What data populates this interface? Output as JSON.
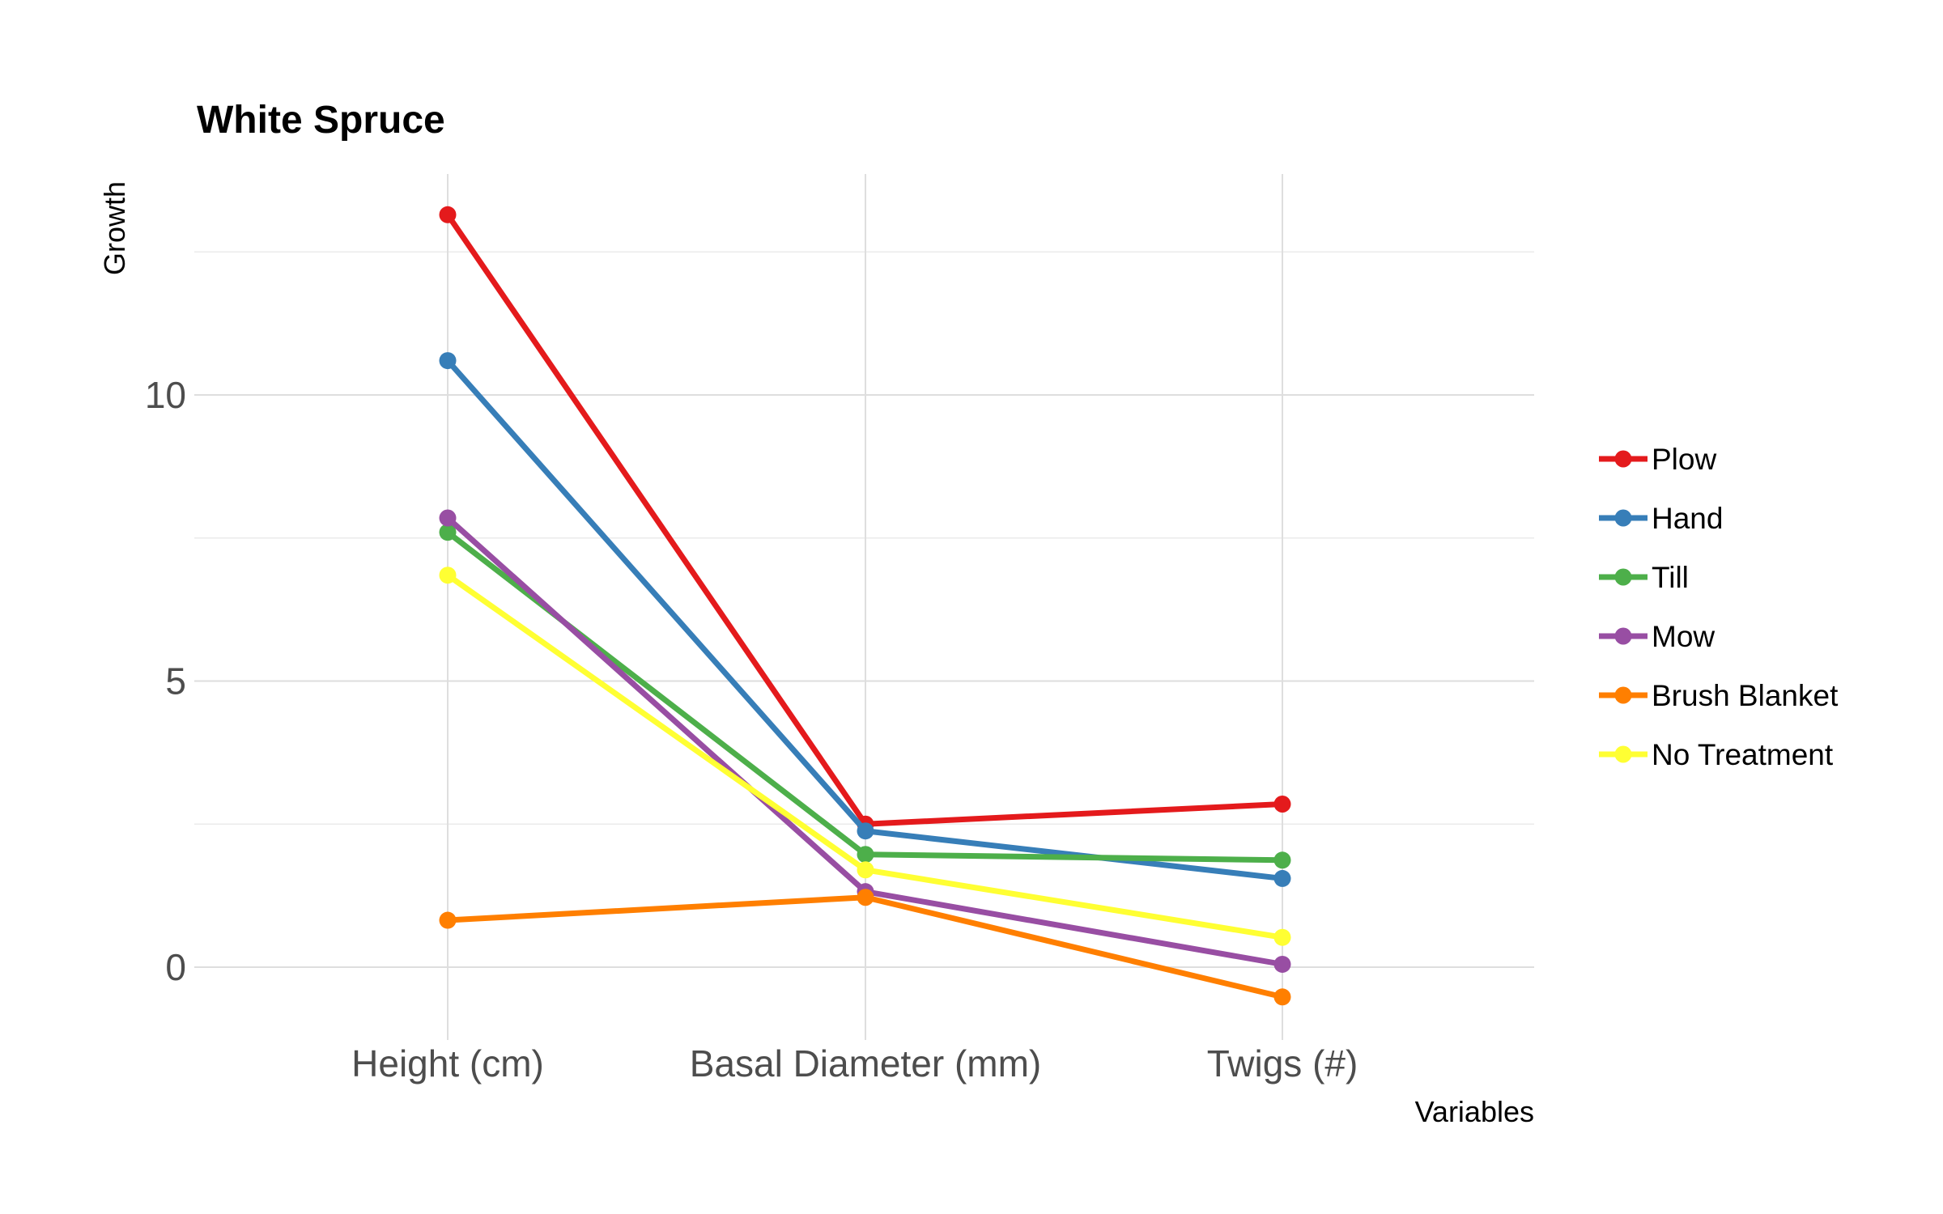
{
  "chart_data": {
    "type": "line",
    "title": "White Spruce",
    "xlabel": "Variables",
    "ylabel": "Growth",
    "categories": [
      "Height (cm)",
      "Basal Diameter (mm)",
      "Twigs (#)"
    ],
    "ylim": [
      -1.2,
      13.8
    ],
    "yticks": [
      0,
      5,
      10
    ],
    "grid": true,
    "legend_position": "right",
    "series": [
      {
        "name": "Plow",
        "color": "#e41a1c",
        "values": [
          13.15,
          2.5,
          2.85
        ]
      },
      {
        "name": "Hand",
        "color": "#377eb8",
        "values": [
          10.6,
          2.38,
          1.55
        ]
      },
      {
        "name": "Till",
        "color": "#4daf4a",
        "values": [
          7.6,
          1.97,
          1.87
        ]
      },
      {
        "name": "Mow",
        "color": "#984ea3",
        "values": [
          7.85,
          1.32,
          0.05
        ]
      },
      {
        "name": "Brush Blanket",
        "color": "#ff7f00",
        "values": [
          0.82,
          1.22,
          -0.52
        ]
      },
      {
        "name": "No Treatment",
        "color": "#ffff33",
        "values": [
          6.85,
          1.7,
          0.52
        ]
      }
    ]
  }
}
